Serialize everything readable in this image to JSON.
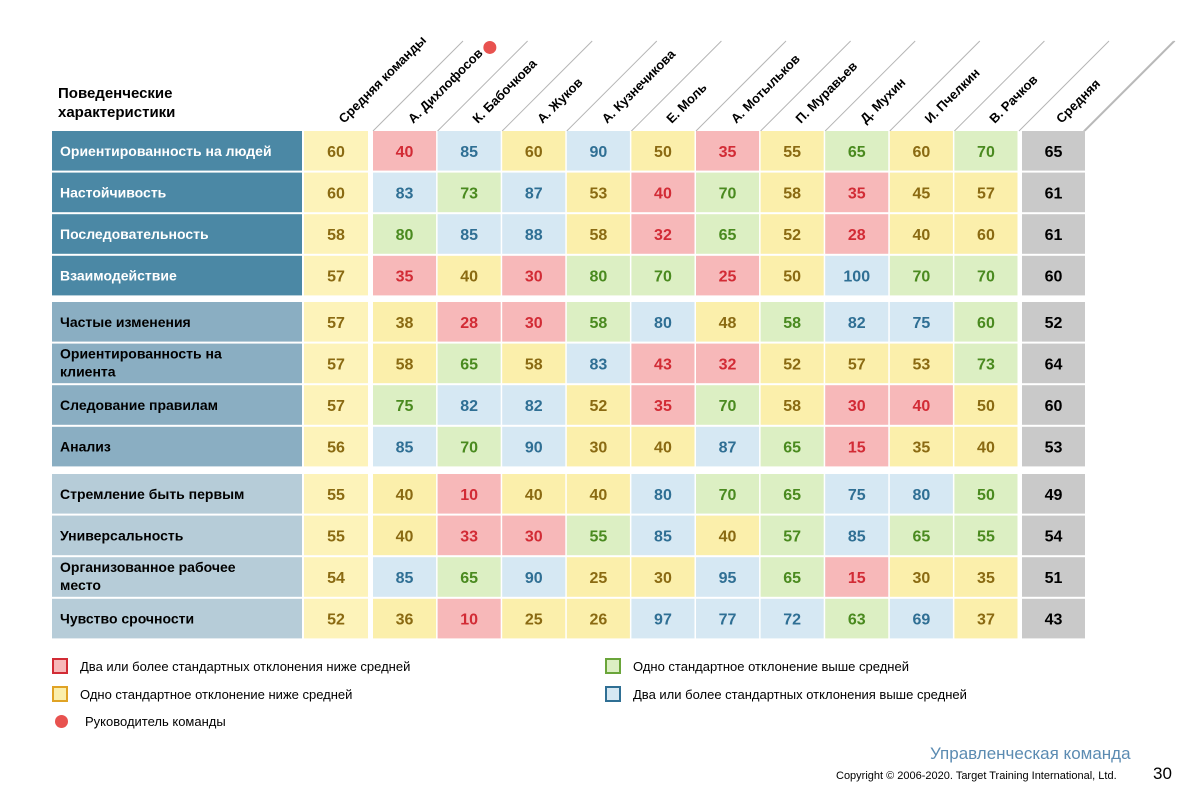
{
  "corner_title": [
    "Поведенческие",
    "характеристики"
  ],
  "leader_column": "А. Дихлофосов",
  "colors": {
    "low2": "#f7b8b9",
    "low1": "#fbefab",
    "high1": "#dcefc3",
    "high2": "#d6e8f3",
    "text_low2": "#d22b35",
    "text_low1": "#8a6a12",
    "text_high1": "#4a8a1f",
    "text_high2": "#2f6f94",
    "team_fill": "#fdf3ba",
    "avg_fill": "#c9c9c9",
    "leader_dot": "#e8524f",
    "group_fills": [
      "#4b88a5",
      "#8aaec2",
      "#b6ccd8"
    ]
  },
  "chart_data": {
    "type": "table",
    "columns": [
      "Средняя команды",
      "А. Дихлофосов",
      "К. Бабочкова",
      "А. Жуков",
      "А. Кузнечикова",
      "Е. Моль",
      "А. Мотыльков",
      "П. Муравьев",
      "Д. Мухин",
      "И. Пчелкин",
      "В. Рачков",
      "Средняя"
    ],
    "groups": [
      {
        "rows": [
          {
            "label": "Ориентированность на людей",
            "team": 60,
            "values": [
              40,
              85,
              60,
              90,
              50,
              35,
              55,
              65,
              60,
              70
            ],
            "levels": [
              "low2",
              "high2",
              "low1",
              "high2",
              "low1",
              "low2",
              "low1",
              "high1",
              "low1",
              "high1"
            ],
            "avg": 65
          },
          {
            "label": "Настойчивость",
            "team": 60,
            "values": [
              83,
              73,
              87,
              53,
              40,
              70,
              58,
              35,
              45,
              57
            ],
            "levels": [
              "high2",
              "high1",
              "high2",
              "low1",
              "low2",
              "high1",
              "low1",
              "low2",
              "low1",
              "low1"
            ],
            "avg": 61
          },
          {
            "label": "Последовательность",
            "team": 58,
            "values": [
              80,
              85,
              88,
              58,
              32,
              65,
              52,
              28,
              40,
              60
            ],
            "levels": [
              "high1",
              "high2",
              "high2",
              "low1",
              "low2",
              "high1",
              "low1",
              "low2",
              "low1",
              "low1"
            ],
            "avg": 61
          },
          {
            "label": "Взаимодействие",
            "team": 57,
            "values": [
              35,
              40,
              30,
              80,
              70,
              25,
              50,
              100,
              70,
              70
            ],
            "levels": [
              "low2",
              "low1",
              "low2",
              "high1",
              "high1",
              "low2",
              "low1",
              "high2",
              "high1",
              "high1"
            ],
            "avg": 60
          }
        ]
      },
      {
        "rows": [
          {
            "label": "Частые изменения",
            "team": 57,
            "values": [
              38,
              28,
              30,
              58,
              80,
              48,
              58,
              82,
              75,
              60
            ],
            "levels": [
              "low1",
              "low2",
              "low2",
              "high1",
              "high2",
              "low1",
              "high1",
              "high2",
              "high2",
              "high1"
            ],
            "avg": 52
          },
          {
            "label": "Ориентированность на клиента",
            "team": 57,
            "values": [
              58,
              65,
              58,
              83,
              43,
              32,
              52,
              57,
              53,
              73
            ],
            "levels": [
              "low1",
              "high1",
              "low1",
              "high2",
              "low2",
              "low2",
              "low1",
              "low1",
              "low1",
              "high1"
            ],
            "avg": 64
          },
          {
            "label": "Следование правилам",
            "team": 57,
            "values": [
              75,
              82,
              82,
              52,
              35,
              70,
              58,
              30,
              40,
              50
            ],
            "levels": [
              "high1",
              "high2",
              "high2",
              "low1",
              "low2",
              "high1",
              "low1",
              "low2",
              "low2",
              "low1"
            ],
            "avg": 60
          },
          {
            "label": "Анализ",
            "team": 56,
            "values": [
              85,
              70,
              90,
              30,
              40,
              87,
              65,
              15,
              35,
              40
            ],
            "levels": [
              "high2",
              "high1",
              "high2",
              "low1",
              "low1",
              "high2",
              "high1",
              "low2",
              "low1",
              "low1"
            ],
            "avg": 53
          }
        ]
      },
      {
        "rows": [
          {
            "label": "Стремление быть первым",
            "team": 55,
            "values": [
              40,
              10,
              40,
              40,
              80,
              70,
              65,
              75,
              80,
              50
            ],
            "levels": [
              "low1",
              "low2",
              "low1",
              "low1",
              "high2",
              "high1",
              "high1",
              "high2",
              "high2",
              "high1"
            ],
            "avg": 49
          },
          {
            "label": "Универсальность",
            "team": 55,
            "values": [
              40,
              33,
              30,
              55,
              85,
              40,
              57,
              85,
              65,
              55
            ],
            "levels": [
              "low1",
              "low2",
              "low2",
              "high1",
              "high2",
              "low1",
              "high1",
              "high2",
              "high1",
              "high1"
            ],
            "avg": 54
          },
          {
            "label": "Организованное рабочее место",
            "team": 54,
            "values": [
              85,
              65,
              90,
              25,
              30,
              95,
              65,
              15,
              30,
              35
            ],
            "levels": [
              "high2",
              "high1",
              "high2",
              "low1",
              "low1",
              "high2",
              "high1",
              "low2",
              "low1",
              "low1"
            ],
            "avg": 51
          },
          {
            "label": "Чувство срочности",
            "team": 52,
            "values": [
              36,
              10,
              25,
              26,
              97,
              77,
              72,
              63,
              69,
              37
            ],
            "levels": [
              "low1",
              "low2",
              "low1",
              "low1",
              "high2",
              "high2",
              "high2",
              "high1",
              "high2",
              "low1"
            ],
            "avg": 43
          }
        ]
      }
    ]
  },
  "legend": {
    "low2": "Два или более стандартных отклонения ниже средней",
    "low1": "Одно стандартное отклонение ниже средней",
    "leader": "Руководитель команды",
    "high1": "Одно стандартное отклонение выше средней",
    "high2": "Два или более стандартных отклонения выше средней"
  },
  "footer": {
    "title": "Управленческая команда",
    "copyright": "Copyright © 2006-2020. Target Training International, Ltd.",
    "page": "30"
  }
}
